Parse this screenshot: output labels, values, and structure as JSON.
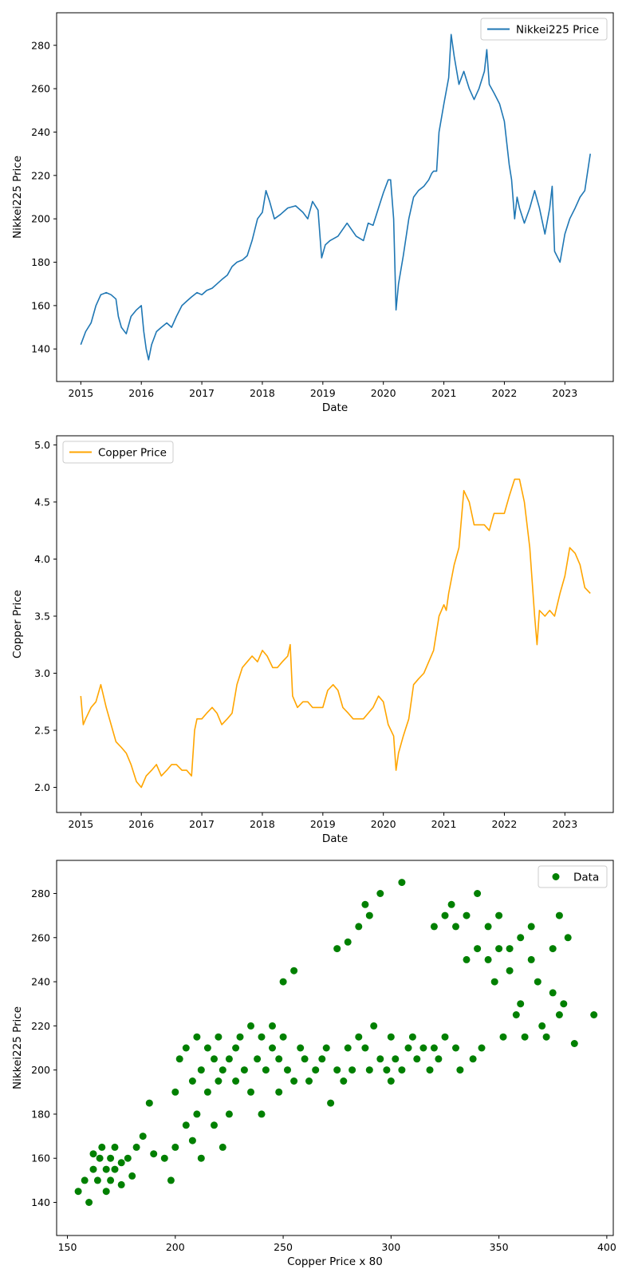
{
  "chart_data": [
    {
      "type": "line",
      "xlabel": "Date",
      "ylabel": "Nikkei225 Price",
      "xlim": [
        2014.6,
        2023.8
      ],
      "ylim": [
        125,
        295
      ],
      "x_ticks": [
        2015,
        2016,
        2017,
        2018,
        2019,
        2020,
        2021,
        2022,
        2023
      ],
      "x_tick_labels": [
        "2015",
        "2016",
        "2017",
        "2018",
        "2019",
        "2020",
        "2021",
        "2022",
        "2023"
      ],
      "y_ticks": [
        140,
        160,
        180,
        200,
        220,
        240,
        260,
        280
      ],
      "y_tick_labels": [
        "140",
        "160",
        "180",
        "200",
        "220",
        "240",
        "260",
        "280"
      ],
      "legend": {
        "position": "upper right",
        "entries": [
          "Nikkei225 Price"
        ]
      },
      "grid": false,
      "series": [
        {
          "name": "Nikkei225 Price",
          "color": "#1f77b4",
          "x": [
            2015.0,
            2015.08,
            2015.17,
            2015.25,
            2015.33,
            2015.42,
            2015.5,
            2015.58,
            2015.62,
            2015.67,
            2015.75,
            2015.83,
            2015.92,
            2016.0,
            2016.04,
            2016.08,
            2016.12,
            2016.17,
            2016.25,
            2016.33,
            2016.42,
            2016.5,
            2016.58,
            2016.67,
            2016.75,
            2016.83,
            2016.92,
            2017.0,
            2017.08,
            2017.17,
            2017.25,
            2017.33,
            2017.42,
            2017.5,
            2017.58,
            2017.67,
            2017.75,
            2017.83,
            2017.92,
            2018.0,
            2018.06,
            2018.12,
            2018.2,
            2018.3,
            2018.42,
            2018.55,
            2018.67,
            2018.75,
            2018.83,
            2018.92,
            2018.98,
            2019.04,
            2019.12,
            2019.25,
            2019.4,
            2019.55,
            2019.67,
            2019.75,
            2019.83,
            2019.92,
            2020.0,
            2020.08,
            2020.12,
            2020.17,
            2020.21,
            2020.25,
            2020.33,
            2020.42,
            2020.5,
            2020.58,
            2020.67,
            2020.75,
            2020.8,
            2020.83,
            2020.88,
            2020.92,
            2021.0,
            2021.08,
            2021.12,
            2021.17,
            2021.25,
            2021.33,
            2021.42,
            2021.5,
            2021.58,
            2021.67,
            2021.71,
            2021.75,
            2021.83,
            2021.92,
            2022.0,
            2022.08,
            2022.12,
            2022.17,
            2022.21,
            2022.25,
            2022.33,
            2022.42,
            2022.5,
            2022.58,
            2022.67,
            2022.75,
            2022.79,
            2022.83,
            2022.92,
            2023.0,
            2023.08,
            2023.17,
            2023.25,
            2023.33,
            2023.42
          ],
          "y": [
            142,
            148,
            152,
            160,
            165,
            166,
            165,
            163,
            155,
            150,
            147,
            155,
            158,
            160,
            148,
            140,
            135,
            142,
            148,
            150,
            152,
            150,
            155,
            160,
            162,
            164,
            166,
            165,
            167,
            168,
            170,
            172,
            174,
            178,
            180,
            181,
            183,
            190,
            200,
            203,
            213,
            208,
            200,
            202,
            205,
            206,
            203,
            200,
            208,
            204,
            182,
            188,
            190,
            192,
            198,
            192,
            190,
            198,
            197,
            205,
            212,
            218,
            218,
            200,
            158,
            170,
            183,
            200,
            210,
            213,
            215,
            218,
            221,
            222,
            222,
            240,
            253,
            265,
            285,
            275,
            262,
            268,
            260,
            255,
            260,
            268,
            278,
            262,
            258,
            253,
            245,
            225,
            218,
            200,
            210,
            205,
            198,
            205,
            213,
            205,
            193,
            205,
            215,
            185,
            180,
            193,
            200,
            205,
            210,
            213,
            230
          ]
        }
      ]
    },
    {
      "type": "line",
      "xlabel": "Date",
      "ylabel": "Copper Price",
      "xlim": [
        2014.6,
        2023.8
      ],
      "ylim": [
        1.78,
        5.08
      ],
      "x_ticks": [
        2015,
        2016,
        2017,
        2018,
        2019,
        2020,
        2021,
        2022,
        2023
      ],
      "x_tick_labels": [
        "2015",
        "2016",
        "2017",
        "2018",
        "2019",
        "2020",
        "2021",
        "2022",
        "2023"
      ],
      "y_ticks": [
        2.0,
        2.5,
        3.0,
        3.5,
        4.0,
        4.5,
        5.0
      ],
      "y_tick_labels": [
        "2.0",
        "2.5",
        "3.0",
        "3.5",
        "4.0",
        "4.5",
        "5.0"
      ],
      "legend": {
        "position": "upper left",
        "entries": [
          "Copper Price"
        ]
      },
      "grid": false,
      "series": [
        {
          "name": "Copper Price",
          "color": "#ffa500",
          "x": [
            2015.0,
            2015.04,
            2015.08,
            2015.17,
            2015.25,
            2015.33,
            2015.42,
            2015.5,
            2015.58,
            2015.67,
            2015.75,
            2015.83,
            2015.92,
            2016.0,
            2016.08,
            2016.17,
            2016.25,
            2016.33,
            2016.42,
            2016.5,
            2016.58,
            2016.67,
            2016.75,
            2016.83,
            2016.88,
            2016.92,
            2017.0,
            2017.08,
            2017.17,
            2017.25,
            2017.33,
            2017.42,
            2017.5,
            2017.58,
            2017.67,
            2017.75,
            2017.83,
            2017.92,
            2018.0,
            2018.08,
            2018.17,
            2018.25,
            2018.33,
            2018.42,
            2018.46,
            2018.5,
            2018.58,
            2018.67,
            2018.75,
            2018.83,
            2018.92,
            2019.0,
            2019.08,
            2019.17,
            2019.25,
            2019.33,
            2019.42,
            2019.5,
            2019.58,
            2019.67,
            2019.75,
            2019.83,
            2019.92,
            2020.0,
            2020.08,
            2020.17,
            2020.21,
            2020.25,
            2020.33,
            2020.42,
            2020.5,
            2020.58,
            2020.67,
            2020.75,
            2020.83,
            2020.92,
            2021.0,
            2021.04,
            2021.08,
            2021.17,
            2021.25,
            2021.33,
            2021.42,
            2021.5,
            2021.58,
            2021.67,
            2021.75,
            2021.83,
            2021.92,
            2022.0,
            2022.08,
            2022.17,
            2022.25,
            2022.33,
            2022.42,
            2022.5,
            2022.54,
            2022.58,
            2022.67,
            2022.75,
            2022.83,
            2022.92,
            2023.0,
            2023.08,
            2023.17,
            2023.25,
            2023.33,
            2023.42
          ],
          "y": [
            2.8,
            2.55,
            2.6,
            2.7,
            2.75,
            2.9,
            2.7,
            2.55,
            2.4,
            2.35,
            2.3,
            2.2,
            2.05,
            2.0,
            2.1,
            2.15,
            2.2,
            2.1,
            2.15,
            2.2,
            2.2,
            2.15,
            2.15,
            2.1,
            2.5,
            2.6,
            2.6,
            2.65,
            2.7,
            2.65,
            2.55,
            2.6,
            2.65,
            2.9,
            3.05,
            3.1,
            3.15,
            3.1,
            3.2,
            3.15,
            3.05,
            3.05,
            3.1,
            3.15,
            3.25,
            2.8,
            2.7,
            2.75,
            2.75,
            2.7,
            2.7,
            2.7,
            2.85,
            2.9,
            2.85,
            2.7,
            2.65,
            2.6,
            2.6,
            2.6,
            2.65,
            2.7,
            2.8,
            2.75,
            2.55,
            2.45,
            2.15,
            2.3,
            2.45,
            2.6,
            2.9,
            2.95,
            3.0,
            3.1,
            3.2,
            3.5,
            3.6,
            3.55,
            3.7,
            3.95,
            4.1,
            4.6,
            4.5,
            4.3,
            4.3,
            4.3,
            4.25,
            4.4,
            4.4,
            4.4,
            4.55,
            4.7,
            4.7,
            4.5,
            4.1,
            3.5,
            3.25,
            3.55,
            3.5,
            3.55,
            3.5,
            3.7,
            3.85,
            4.1,
            4.05,
            3.95,
            3.75,
            3.7
          ]
        }
      ]
    },
    {
      "type": "scatter",
      "xlabel": "Copper Price x 80",
      "ylabel": "Nikkei225 Price",
      "xlim": [
        145,
        403
      ],
      "ylim": [
        125,
        295
      ],
      "x_ticks": [
        150,
        200,
        250,
        300,
        350,
        400
      ],
      "x_tick_labels": [
        "150",
        "200",
        "250",
        "300",
        "350",
        "400"
      ],
      "y_ticks": [
        140,
        160,
        180,
        200,
        220,
        240,
        260,
        280
      ],
      "y_tick_labels": [
        "140",
        "160",
        "180",
        "200",
        "220",
        "240",
        "260",
        "280"
      ],
      "legend": {
        "position": "upper right",
        "entries": [
          "Data"
        ]
      },
      "grid": false,
      "series": [
        {
          "name": "Data",
          "color": "#008000",
          "x": [
            155,
            158,
            160,
            162,
            162,
            164,
            165,
            166,
            168,
            168,
            170,
            170,
            172,
            172,
            175,
            175,
            178,
            180,
            182,
            185,
            188,
            190,
            195,
            198,
            200,
            200,
            202,
            205,
            205,
            208,
            208,
            210,
            210,
            212,
            212,
            215,
            215,
            218,
            218,
            220,
            220,
            222,
            222,
            225,
            225,
            228,
            228,
            230,
            232,
            235,
            235,
            238,
            240,
            240,
            242,
            245,
            245,
            248,
            248,
            250,
            250,
            252,
            255,
            255,
            258,
            260,
            262,
            265,
            268,
            270,
            272,
            275,
            275,
            278,
            280,
            280,
            282,
            285,
            285,
            288,
            288,
            290,
            290,
            292,
            295,
            295,
            298,
            300,
            300,
            302,
            305,
            305,
            308,
            310,
            312,
            315,
            318,
            320,
            320,
            322,
            325,
            325,
            328,
            330,
            330,
            332,
            335,
            335,
            338,
            340,
            340,
            342,
            345,
            345,
            348,
            350,
            350,
            352,
            355,
            355,
            358,
            360,
            360,
            362,
            365,
            365,
            368,
            370,
            372,
            375,
            375,
            378,
            378,
            380,
            382,
            385,
            394
          ],
          "y": [
            145,
            150,
            140,
            155,
            162,
            150,
            160,
            165,
            155,
            145,
            160,
            150,
            165,
            155,
            158,
            148,
            160,
            152,
            165,
            170,
            185,
            162,
            160,
            150,
            165,
            190,
            205,
            175,
            210,
            195,
            168,
            215,
            180,
            200,
            160,
            210,
            190,
            205,
            175,
            215,
            195,
            200,
            165,
            205,
            180,
            210,
            195,
            215,
            200,
            220,
            190,
            205,
            215,
            180,
            200,
            210,
            220,
            190,
            205,
            215,
            240,
            200,
            195,
            245,
            210,
            205,
            195,
            200,
            205,
            210,
            185,
            200,
            255,
            195,
            210,
            258,
            200,
            215,
            265,
            210,
            275,
            200,
            270,
            220,
            280,
            205,
            200,
            195,
            215,
            205,
            200,
            285,
            210,
            215,
            205,
            210,
            200,
            210,
            265,
            205,
            270,
            215,
            275,
            210,
            265,
            200,
            270,
            250,
            205,
            280,
            255,
            210,
            265,
            250,
            240,
            255,
            270,
            215,
            255,
            245,
            225,
            260,
            230,
            215,
            250,
            265,
            240,
            220,
            215,
            255,
            235,
            225,
            270,
            230,
            260,
            212,
            225
          ]
        }
      ]
    }
  ]
}
